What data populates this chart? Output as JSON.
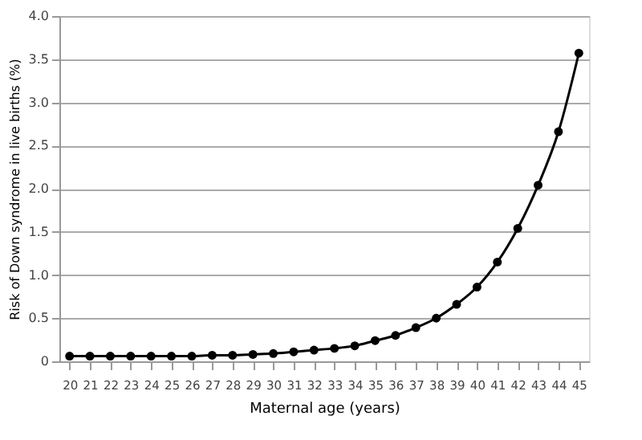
{
  "chart_data": {
    "type": "line",
    "xlabel": "Maternal age (years)",
    "ylabel": "Risk of Down syndrome in live births (%)",
    "categories": [
      "20",
      "21",
      "22",
      "23",
      "24",
      "25",
      "26",
      "27",
      "28",
      "29",
      "30",
      "31",
      "32",
      "33",
      "34",
      "35",
      "36",
      "37",
      "38",
      "39",
      "40",
      "41",
      "42",
      "43",
      "44",
      "45"
    ],
    "series": [
      {
        "color": "#000000",
        "values": [
          0.06,
          0.06,
          0.06,
          0.06,
          0.06,
          0.06,
          0.06,
          0.07,
          0.07,
          0.08,
          0.09,
          0.11,
          0.13,
          0.15,
          0.18,
          0.24,
          0.3,
          0.39,
          0.5,
          0.66,
          0.86,
          1.15,
          1.54,
          2.04,
          2.66,
          3.57
        ]
      }
    ],
    "ylim": [
      0,
      4
    ],
    "yticks": [
      0,
      0.5,
      {
        "value": 1,
        "label": "1.0"
      },
      1.5,
      {
        "value": 2,
        "label": "2.0"
      },
      2.5,
      {
        "value": 3,
        "label": "3.0"
      },
      3.5,
      {
        "value": 4,
        "label": "4.0"
      }
    ],
    "grid": "y",
    "marker": "circle",
    "line_style": "solid"
  }
}
